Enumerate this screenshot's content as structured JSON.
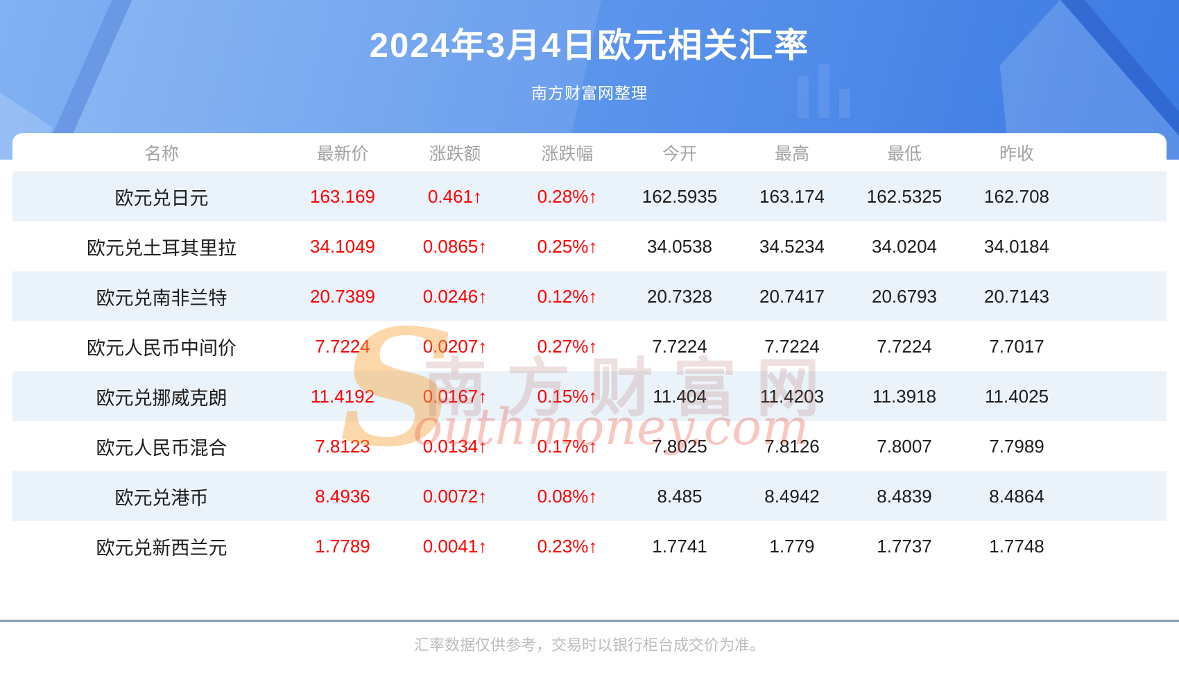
{
  "header": {
    "title": "2024年3月4日欧元相关汇率",
    "subtitle": "南方财富网整理"
  },
  "table": {
    "columns": [
      "名称",
      "最新价",
      "涨跌额",
      "涨跌幅",
      "今开",
      "最高",
      "最低",
      "昨收"
    ],
    "rows": [
      {
        "name": "欧元兑日元",
        "latest": "163.169",
        "change": "0.461↑",
        "pct": "0.28%↑",
        "open": "162.5935",
        "high": "163.174",
        "low": "162.5325",
        "prev": "162.708"
      },
      {
        "name": "欧元兑土耳其里拉",
        "latest": "34.1049",
        "change": "0.0865↑",
        "pct": "0.25%↑",
        "open": "34.0538",
        "high": "34.5234",
        "low": "34.0204",
        "prev": "34.0184"
      },
      {
        "name": "欧元兑南非兰特",
        "latest": "20.7389",
        "change": "0.0246↑",
        "pct": "0.12%↑",
        "open": "20.7328",
        "high": "20.7417",
        "low": "20.6793",
        "prev": "20.7143"
      },
      {
        "name": "欧元人民币中间价",
        "latest": "7.7224",
        "change": "0.0207↑",
        "pct": "0.27%↑",
        "open": "7.7224",
        "high": "7.7224",
        "low": "7.7224",
        "prev": "7.7017"
      },
      {
        "name": "欧元兑挪威克朗",
        "latest": "11.4192",
        "change": "0.0167↑",
        "pct": "0.15%↑",
        "open": "11.404",
        "high": "11.4203",
        "low": "11.3918",
        "prev": "11.4025"
      },
      {
        "name": "欧元人民币混合",
        "latest": "7.8123",
        "change": "0.0134↑",
        "pct": "0.17%↑",
        "open": "7.8025",
        "high": "7.8126",
        "low": "7.8007",
        "prev": "7.7989"
      },
      {
        "name": "欧元兑港币",
        "latest": "8.4936",
        "change": "0.0072↑",
        "pct": "0.08%↑",
        "open": "8.485",
        "high": "8.4942",
        "low": "8.4839",
        "prev": "8.4864"
      },
      {
        "name": "欧元兑新西兰元",
        "latest": "1.7789",
        "change": "0.0041↑",
        "pct": "0.23%↑",
        "open": "1.7741",
        "high": "1.779",
        "low": "1.7737",
        "prev": "1.7748"
      }
    ]
  },
  "watermark": {
    "s_glyph": "S",
    "cn_text": "南方财富网",
    "en_text": "outhmoney.com"
  },
  "footer": {
    "disclaimer": "汇率数据仅供参考，交易时以银行柜台成交价为准。"
  },
  "colors": {
    "accent_red": "#fe0000",
    "banner_blue_light": "#82b2f3",
    "banner_blue_dark": "#3b7ae3",
    "alt_row_blue": "#ebf3fa",
    "divider_gray_blue": "#8a9cb0",
    "header_text_gray": "#a3a3a3"
  }
}
